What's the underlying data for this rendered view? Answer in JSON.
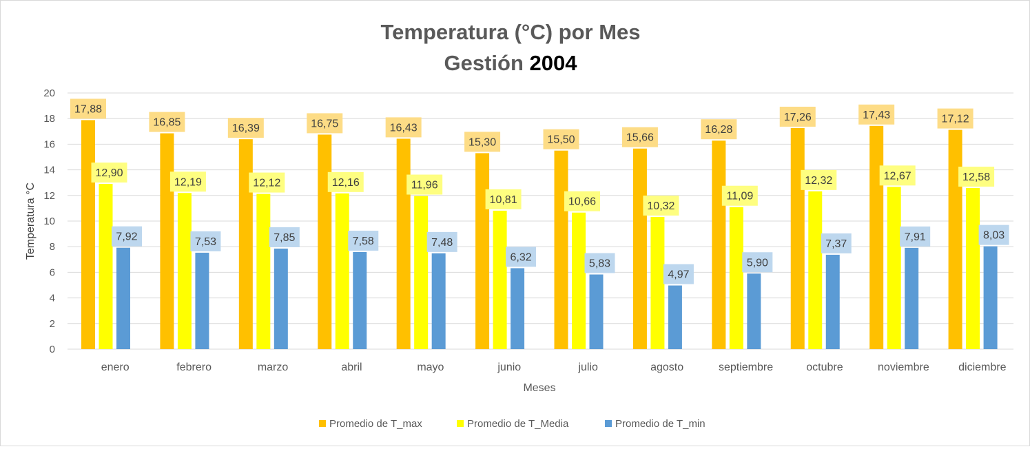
{
  "chart_data": {
    "type": "bar",
    "title_line1": "Temperatura (°C) por Mes",
    "title_line2_prefix": "Gestión",
    "title_line2_year": "2004",
    "xlabel": "Meses",
    "ylabel": "Temperatura °C",
    "ylim": [
      0,
      20
    ],
    "yticks": [
      0,
      2,
      4,
      6,
      8,
      10,
      12,
      14,
      16,
      18,
      20
    ],
    "ytick_labels": [
      "0",
      "2",
      "4",
      "6",
      "8",
      "10",
      "12",
      "14",
      "16",
      "18",
      "20"
    ],
    "grid": true,
    "legend_position": "bottom",
    "categories": [
      "enero",
      "febrero",
      "marzo",
      "abril",
      "mayo",
      "junio",
      "julio",
      "agosto",
      "septiembre",
      "octubre",
      "noviembre",
      "diciembre"
    ],
    "series": [
      {
        "name": "Promedio de T_max",
        "color": "#FFC000",
        "label_bg": "#FDDC86",
        "values": [
          17.88,
          16.85,
          16.39,
          16.75,
          16.43,
          15.3,
          15.5,
          15.66,
          16.28,
          17.26,
          17.43,
          17.12
        ],
        "labels": [
          "17,88",
          "16,85",
          "16,39",
          "16,75",
          "16,43",
          "15,30",
          "15,50",
          "15,66",
          "16,28",
          "17,26",
          "17,43",
          "17,12"
        ]
      },
      {
        "name": "Promedio de T_Media",
        "color": "#FFFF00",
        "label_bg": "#FEFE80",
        "values": [
          12.9,
          12.19,
          12.12,
          12.16,
          11.96,
          10.81,
          10.66,
          10.32,
          11.09,
          12.32,
          12.67,
          12.58
        ],
        "labels": [
          "12,90",
          "12,19",
          "12,12",
          "12,16",
          "11,96",
          "10,81",
          "10,66",
          "10,32",
          "11,09",
          "12,32",
          "12,67",
          "12,58"
        ]
      },
      {
        "name": "Promedio de T_min",
        "color": "#5B9BD5",
        "label_bg": "#BDD7EE",
        "values": [
          7.92,
          7.53,
          7.85,
          7.58,
          7.48,
          6.32,
          5.83,
          4.97,
          5.9,
          7.37,
          7.91,
          8.03
        ],
        "labels": [
          "7,92",
          "7,53",
          "7,85",
          "7,58",
          "7,48",
          "6,32",
          "5,83",
          "4,97",
          "5,90",
          "7,37",
          "7,91",
          "8,03"
        ]
      }
    ]
  }
}
